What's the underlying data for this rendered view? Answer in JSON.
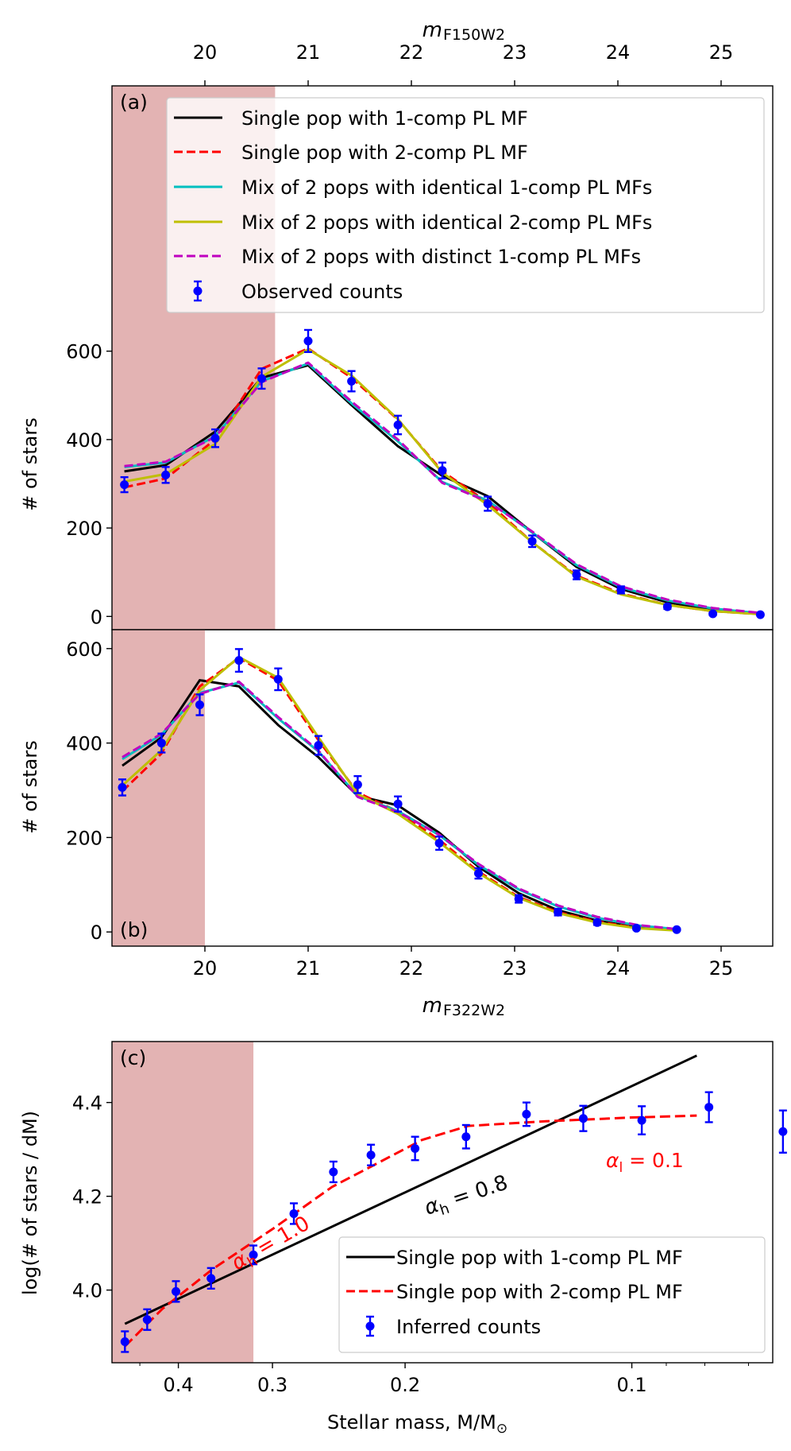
{
  "colors": {
    "black": "#000000",
    "red": "#ff0000",
    "cyan": "#00bfbf",
    "olive": "#bfbf00",
    "magenta": "#bf00bf",
    "blue": "#0000ff",
    "shade": "#e3b3b3"
  },
  "chart_data": [
    {
      "id": "a",
      "type": "line",
      "panel_label": "(a)",
      "ylabel": "# of stars",
      "xlim": [
        19.1,
        25.5
      ],
      "ylim": [
        -30,
        1200
      ],
      "yticks": [
        0,
        200,
        400,
        600
      ],
      "shade_xmax": 20.68,
      "top_axis": {
        "label": "m",
        "label_sub": "F150W2",
        "ticks": [
          20,
          21,
          22,
          23,
          24,
          25
        ]
      },
      "legend": {
        "position": "upper right",
        "entries": [
          "Single pop with 1-comp PL MF",
          "Single pop with 2-comp PL MF",
          "Mix of 2 pops with identical 1-comp PL MFs",
          "Mix of 2 pops with identical 2-comp PL MFs",
          "Mix of 2 pops with distinct 1-comp PL MFs",
          "Observed counts"
        ]
      },
      "x": [
        19.22,
        19.62,
        20.1,
        20.55,
        21.0,
        21.42,
        21.87,
        22.3,
        22.74,
        23.17,
        23.6,
        24.03,
        24.48,
        24.92,
        25.38
      ],
      "series": [
        {
          "name": "Single pop with 1-comp PL MF",
          "color": "#000000",
          "dash": "solid",
          "values": [
            328,
            342,
            418,
            540,
            568,
            478,
            385,
            318,
            272,
            190,
            112,
            62,
            32,
            15,
            6
          ]
        },
        {
          "name": "Single pop with 2-comp PL MF",
          "color": "#ff0000",
          "dash": "dashed",
          "values": [
            292,
            312,
            400,
            560,
            606,
            540,
            445,
            328,
            258,
            168,
            92,
            52,
            26,
            12,
            5
          ]
        },
        {
          "name": "Mix of 2 pops with identical 1-comp PL MFs",
          "color": "#00bfbf",
          "dash": "solid",
          "values": [
            338,
            348,
            408,
            532,
            572,
            482,
            396,
            304,
            262,
            190,
            116,
            66,
            36,
            18,
            7
          ]
        },
        {
          "name": "Mix of 2 pops with identical 2-comp PL MFs",
          "color": "#bfbf00",
          "dash": "solid",
          "values": [
            305,
            322,
            390,
            542,
            604,
            545,
            446,
            325,
            252,
            168,
            90,
            50,
            26,
            12,
            5
          ]
        },
        {
          "name": "Mix of 2 pops with distinct 1-comp PL MFs",
          "color": "#bf00bf",
          "dash": "dashed",
          "values": [
            340,
            350,
            406,
            530,
            574,
            486,
            400,
            302,
            260,
            192,
            118,
            68,
            38,
            19,
            8
          ]
        }
      ],
      "observed": {
        "name": "Observed counts",
        "values": [
          298,
          320,
          403,
          538,
          623,
          532,
          433,
          330,
          255,
          170,
          94,
          60,
          22,
          6,
          4
        ],
        "errors": [
          17,
          18,
          20,
          23,
          25,
          23,
          21,
          18,
          16,
          13,
          10,
          8,
          5,
          3,
          2
        ]
      }
    },
    {
      "id": "b",
      "type": "line",
      "panel_label": "(b)",
      "ylabel": "# of stars",
      "xlabel": "m",
      "xlabel_sub": "F322W2",
      "xlim": [
        19.1,
        25.5
      ],
      "ylim": [
        -30,
        640
      ],
      "yticks": [
        0,
        200,
        400,
        600
      ],
      "xticks": [
        20,
        21,
        22,
        23,
        24,
        25
      ],
      "shade_xmax": 20.0,
      "x": [
        19.2,
        19.58,
        19.95,
        20.33,
        20.71,
        21.1,
        21.48,
        21.87,
        22.27,
        22.65,
        23.04,
        23.42,
        23.8,
        24.18,
        24.57
      ],
      "series": [
        {
          "name": "Single pop with 1-comp PL MF",
          "color": "#000000",
          "dash": "solid",
          "values": [
            352,
            412,
            533,
            520,
            438,
            370,
            288,
            268,
            210,
            138,
            82,
            46,
            24,
            10,
            4
          ]
        },
        {
          "name": "Single pop with 2-comp PL MF",
          "color": "#ff0000",
          "dash": "dashed",
          "values": [
            298,
            378,
            520,
            580,
            532,
            406,
            295,
            255,
            195,
            128,
            74,
            42,
            22,
            9,
            4
          ]
        },
        {
          "name": "Mix of 2 pops with identical 1-comp PL MFs",
          "color": "#00bfbf",
          "dash": "solid",
          "values": [
            366,
            418,
            506,
            528,
            452,
            382,
            288,
            256,
            205,
            142,
            90,
            54,
            30,
            14,
            6
          ]
        },
        {
          "name": "Mix of 2 pops with identical 2-comp PL MFs",
          "color": "#bfbf00",
          "dash": "solid",
          "values": [
            310,
            385,
            512,
            582,
            538,
            412,
            292,
            250,
            190,
            125,
            72,
            40,
            20,
            8,
            3
          ]
        },
        {
          "name": "Mix of 2 pops with distinct 1-comp PL MFs",
          "color": "#bf00bf",
          "dash": "dashed",
          "values": [
            370,
            420,
            504,
            530,
            455,
            384,
            286,
            254,
            206,
            144,
            92,
            56,
            32,
            15,
            6
          ]
        }
      ],
      "observed": {
        "name": "Observed counts",
        "values": [
          306,
          400,
          481,
          575,
          535,
          395,
          312,
          271,
          188,
          124,
          70,
          42,
          20,
          8,
          5
        ],
        "errors": [
          17,
          20,
          22,
          24,
          23,
          20,
          18,
          16,
          14,
          11,
          8,
          7,
          5,
          3,
          2
        ]
      }
    },
    {
      "id": "c",
      "type": "line",
      "panel_label": "(c)",
      "ylabel": "log(# of stars / dM)",
      "xlabel": "Stellar mass, M/M",
      "xscale": "inverted",
      "xlim": [
        0.49,
        0.065
      ],
      "ylim": [
        3.845,
        4.53
      ],
      "xticks": [
        0.4,
        0.3,
        0.2,
        0.1
      ],
      "yticks": [
        4.0,
        4.2,
        4.4
      ],
      "shade_xmin_mass": 0.318,
      "legend": {
        "position": "lower right",
        "entries": [
          "Single pop with 1-comp PL MF",
          "Single pop with 2-comp PL MF",
          "Inferred counts"
        ]
      },
      "series": [
        {
          "name": "Single pop with 1-comp PL MF",
          "color": "#000000",
          "dash": "solid",
          "x": [
            0.471,
            0.082
          ],
          "values": [
            3.928,
            4.5
          ]
        },
        {
          "name": "Single pop with 2-comp PL MF",
          "color": "#ff0000",
          "dash": "dashed",
          "x": [
            0.471,
            0.42,
            0.36,
            0.3,
            0.25,
            0.19,
            0.165,
            0.13,
            0.1,
            0.082
          ],
          "values": [
            3.88,
            3.96,
            4.045,
            4.13,
            4.22,
            4.32,
            4.35,
            4.36,
            4.368,
            4.372
          ]
        }
      ],
      "observed": {
        "name": "Inferred counts",
        "x": [
          0.471,
          0.44,
          0.403,
          0.362,
          0.318,
          0.281,
          0.249,
          0.222,
          0.194,
          0.166,
          0.138,
          0.116,
          0.097,
          0.079,
          0.063
        ],
        "values": [
          3.89,
          3.937,
          3.997,
          4.025,
          4.075,
          4.163,
          4.252,
          4.288,
          4.302,
          4.327,
          4.375,
          4.366,
          4.362,
          4.39,
          4.338
        ],
        "errors": [
          0.022,
          0.022,
          0.022,
          0.022,
          0.02,
          0.022,
          0.022,
          0.022,
          0.025,
          0.025,
          0.025,
          0.027,
          0.03,
          0.032,
          0.045
        ]
      },
      "annotations": [
        {
          "text": "α",
          "sub": "h",
          "rest": " = 0.8",
          "color": "#000000"
        },
        {
          "text": "α",
          "sub": "h",
          "rest": " = 1.0",
          "color": "#ff0000"
        },
        {
          "text": "α",
          "sub": "l",
          "rest": " = 0.1",
          "color": "#ff0000"
        }
      ]
    }
  ]
}
